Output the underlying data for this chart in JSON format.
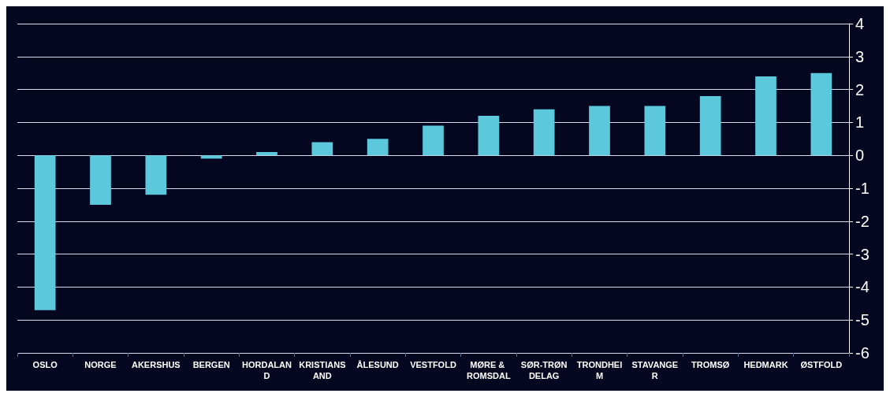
{
  "chart_data": {
    "type": "bar",
    "categories": [
      "OSLO",
      "NORGE",
      "AKERSHUS",
      "BERGEN",
      "HORDALAND",
      "KRISTIANSAND",
      "ÅLESUND",
      "VESTFOLD",
      "MØRE & ROMSDAL",
      "SØR-TRØNDELAG",
      "TRONDHEIM",
      "STAVANGER",
      "TROMSØ",
      "HEDMARK",
      "ØSTFOLD"
    ],
    "values": [
      -4.7,
      -1.5,
      -1.2,
      -0.1,
      0.1,
      0.4,
      0.5,
      0.9,
      1.2,
      1.4,
      1.5,
      1.5,
      1.8,
      2.4,
      2.5
    ],
    "color": "#5bc8dc",
    "ylim": [
      -6,
      4
    ],
    "yticks": [
      -6,
      -5,
      -4,
      -3,
      -2,
      -1,
      0,
      1,
      2,
      3,
      4
    ],
    "grid": "y"
  }
}
